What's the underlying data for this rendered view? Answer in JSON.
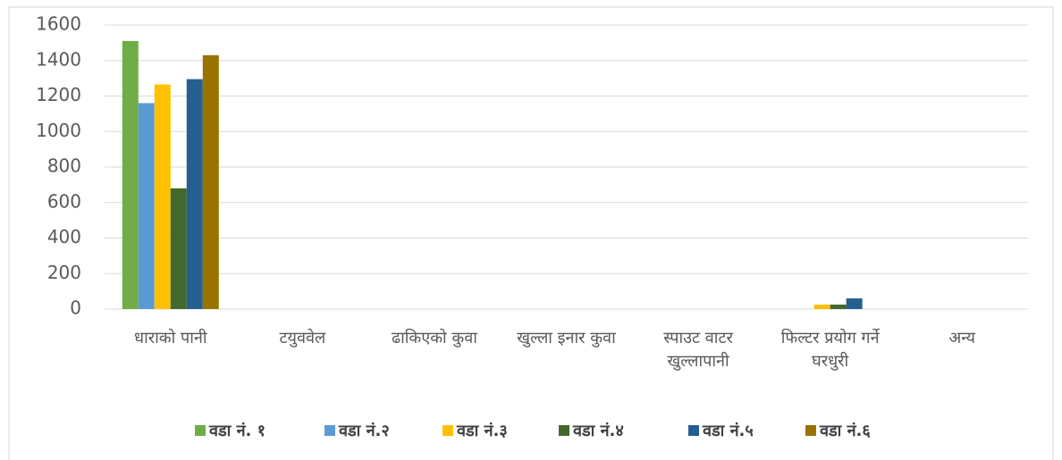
{
  "chart_data": {
    "type": "bar",
    "categories": [
      "धाराको पानी",
      "टयुववेल",
      "ढाकिएको कुवा",
      "खुल्ला इनार कुवा",
      "स्पाउट वाटर खुल्लापानी",
      "फिल्टर प्रयोग गर्ने घरधुरी",
      "अन्य"
    ],
    "series": [
      {
        "name": "वडा नं. १",
        "color": "#70ad47",
        "values": [
          1510,
          0,
          0,
          0,
          0,
          0,
          0
        ]
      },
      {
        "name": "वडा नं.२",
        "color": "#5b9bd5",
        "values": [
          1160,
          0,
          0,
          0,
          0,
          0,
          0
        ]
      },
      {
        "name": "वडा नं.३",
        "color": "#ffc000",
        "values": [
          1265,
          0,
          0,
          0,
          0,
          25,
          0
        ]
      },
      {
        "name": "वडा नं.४",
        "color": "#43682b",
        "values": [
          680,
          0,
          0,
          0,
          0,
          25,
          0
        ]
      },
      {
        "name": "वडा नं.५",
        "color": "#255e91",
        "values": [
          1295,
          0,
          0,
          0,
          0,
          60,
          0
        ]
      },
      {
        "name": "वडा नं.६",
        "color": "#997300",
        "values": [
          1430,
          0,
          0,
          0,
          0,
          0,
          0
        ]
      }
    ],
    "ylim": [
      0,
      1600
    ],
    "yticks": [
      0,
      200,
      400,
      600,
      800,
      1000,
      1200,
      1400,
      1600
    ],
    "grid": true,
    "legend": "bottom"
  }
}
